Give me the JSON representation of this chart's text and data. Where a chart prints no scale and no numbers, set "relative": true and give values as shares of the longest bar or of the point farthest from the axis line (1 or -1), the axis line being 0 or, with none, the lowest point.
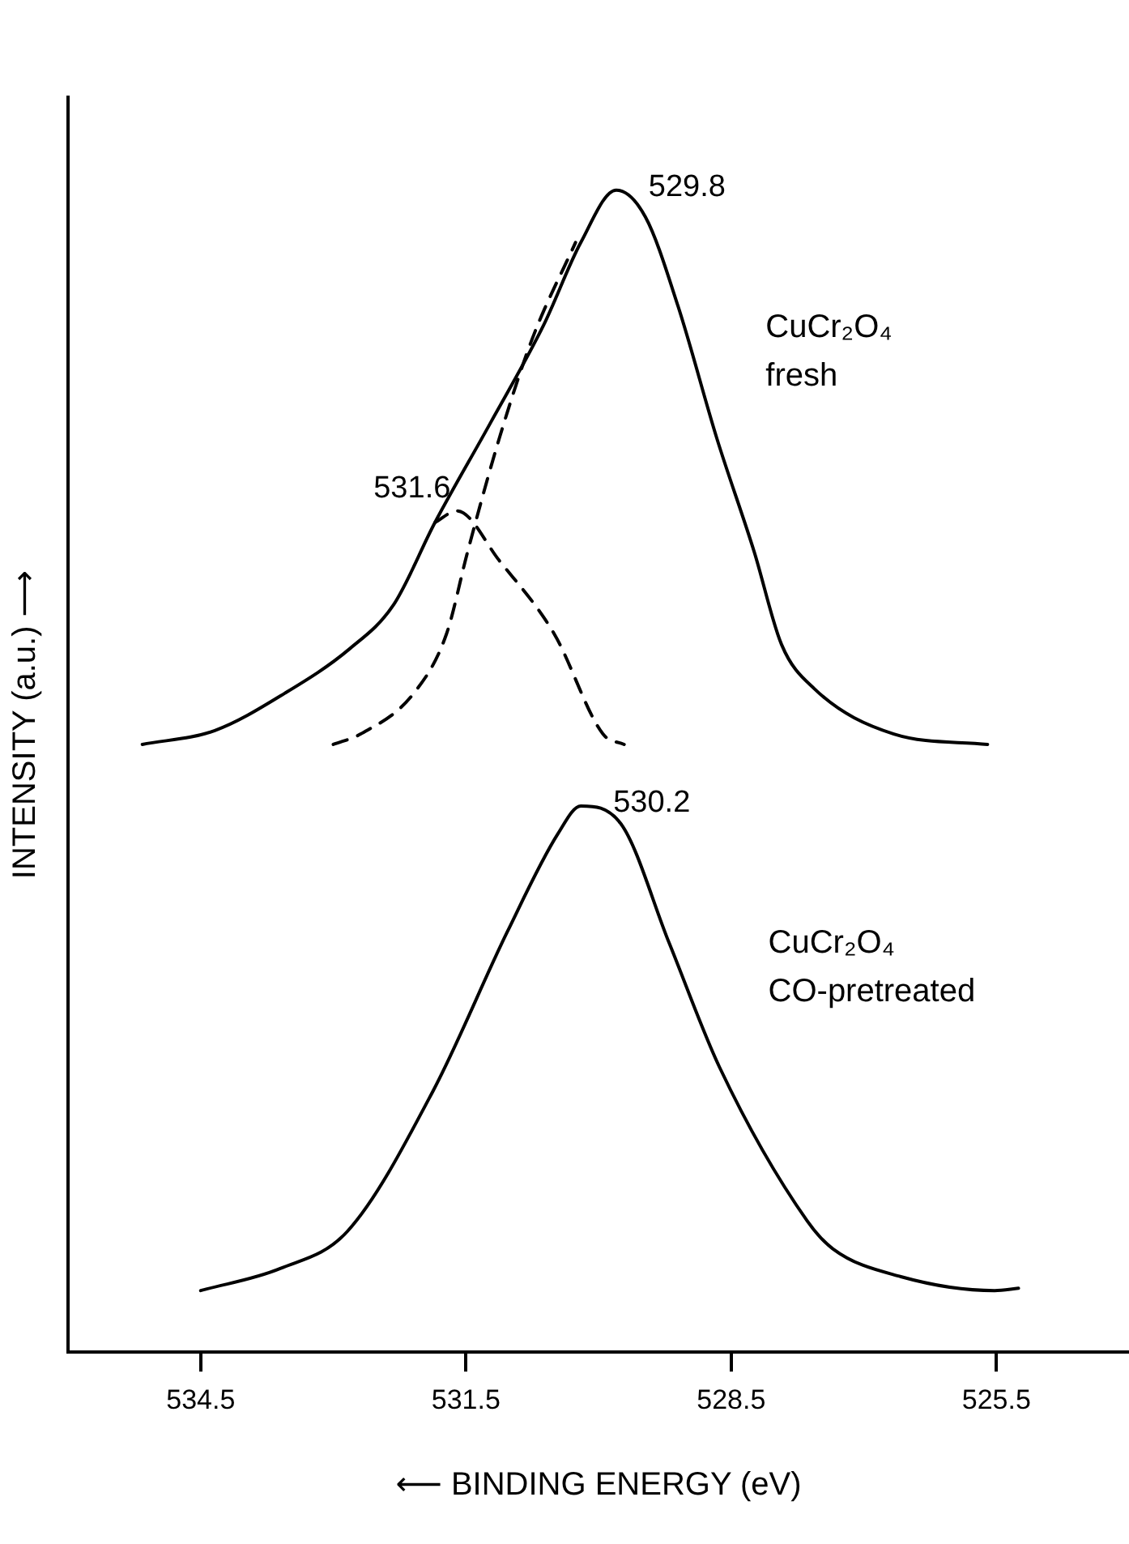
{
  "chart_data": {
    "type": "line",
    "relative": true,
    "xlabel": "⟵ BINDING ENERGY (eV)",
    "ylabel": "INTENSITY (a.u.) ⟶",
    "xlim": [
      536,
      524
    ],
    "xticks": [
      534.5,
      531.5,
      528.5,
      525.5
    ],
    "grid": false,
    "legend": false,
    "marker": "none",
    "series": [
      {
        "name": "CuCr₂O₄ fresh",
        "color": "#000000",
        "line_style": "solid",
        "x": [
          535.16,
          534.34,
          533.55,
          532.82,
          532.32,
          531.85,
          531.22,
          530.62,
          530.2,
          529.8,
          529.47,
          529.1,
          528.66,
          528.24,
          527.93,
          527.56,
          526.66,
          525.6
        ],
        "values": [
          0.523,
          0.535,
          0.567,
          0.605,
          0.643,
          0.714,
          0.8,
          0.884,
          0.955,
          1,
          0.977,
          0.9,
          0.786,
          0.689,
          0.609,
          0.571,
          0.532,
          0.523
        ]
      },
      {
        "color": "#000000",
        "line_style": "dashed",
        "x": [
          533.0,
          532.69,
          532.09,
          531.72,
          531.48,
          531.12,
          530.75,
          530.26
        ],
        "values": [
          0.523,
          0.532,
          0.567,
          0.618,
          0.689,
          0.787,
          0.872,
          0.955
        ]
      },
      {
        "color": "#000000",
        "line_style": "dashed",
        "x": [
          531.85,
          531.6,
          531.12,
          530.5,
          529.95,
          529.71
        ],
        "values": [
          0.714,
          0.724,
          0.681,
          0.618,
          0.532,
          0.523
        ]
      },
      {
        "name": "CuCr₂O₄ CO-pretreated",
        "color": "#000000",
        "line_style": "solid",
        "x": [
          534.5,
          533.6,
          532.84,
          531.87,
          531.03,
          530.46,
          530.2,
          529.75,
          529.2,
          528.63,
          527.64,
          527.35,
          526.58,
          525.52,
          525.25
        ],
        "values": [
          0.053,
          0.072,
          0.104,
          0.225,
          0.362,
          0.446,
          0.47,
          0.455,
          0.352,
          0.245,
          0.113,
          0.089,
          0.065,
          0.053,
          0.055
        ]
      }
    ],
    "annotations": [
      {
        "text": "529.8",
        "x": 529.8,
        "y": 1
      },
      {
        "text": "531.6",
        "x": 531.6,
        "y": 0.724
      },
      {
        "text": "530.2",
        "x": 530.2,
        "y": 0.47
      }
    ]
  }
}
